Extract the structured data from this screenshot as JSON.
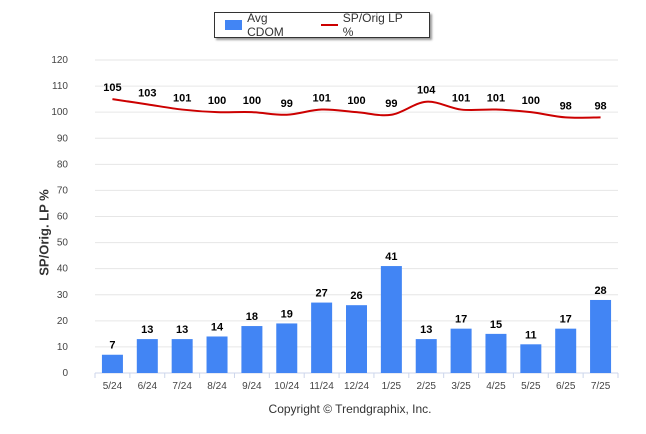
{
  "chart_data": {
    "type": "bar",
    "categories": [
      "5/24",
      "6/24",
      "7/24",
      "8/24",
      "9/24",
      "10/24",
      "11/24",
      "12/24",
      "1/25",
      "2/25",
      "3/25",
      "4/25",
      "5/25",
      "6/25",
      "7/25"
    ],
    "series": [
      {
        "name": "Avg CDOM",
        "type": "bar",
        "values": [
          7,
          13,
          13,
          14,
          18,
          19,
          27,
          26,
          41,
          13,
          17,
          15,
          11,
          17,
          28
        ],
        "color": "#4285f4"
      },
      {
        "name": "SP/Orig LP %",
        "type": "line",
        "values": [
          105,
          103,
          101,
          100,
          100,
          99,
          101,
          100,
          99,
          104,
          101,
          101,
          100,
          98,
          98
        ],
        "color": "#cc0000"
      }
    ],
    "ylabel": "SP/Orig. LP %",
    "ylim": [
      0,
      120
    ],
    "yticks": [
      0,
      10,
      20,
      30,
      40,
      50,
      60,
      70,
      80,
      90,
      100,
      110,
      120
    ],
    "grid": true,
    "legend_position": "top-center"
  },
  "footer": {
    "copyright": "Copyright © Trendgraphix, Inc."
  }
}
